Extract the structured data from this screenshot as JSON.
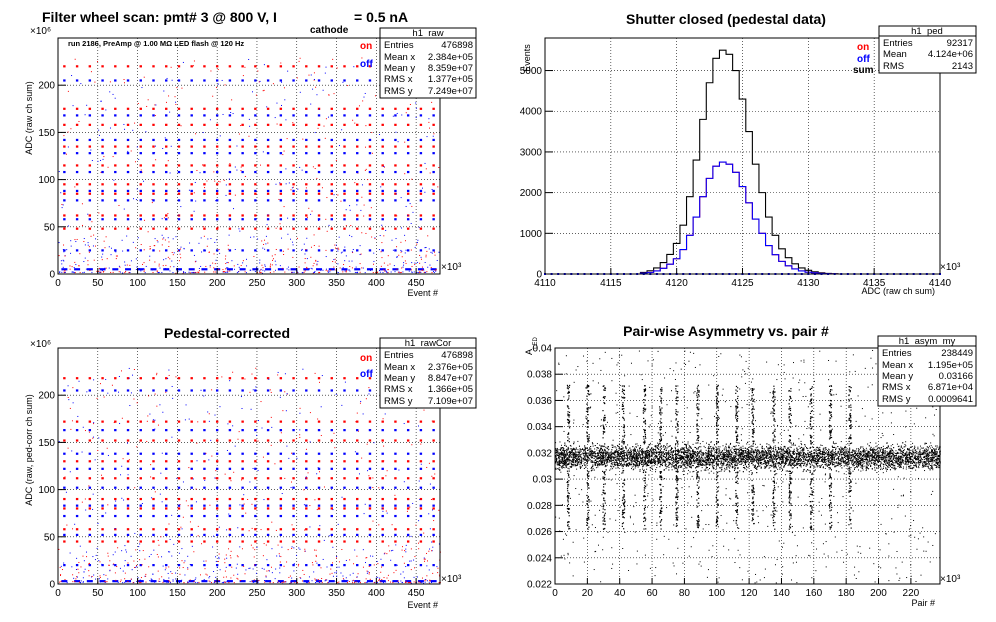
{
  "chart_data": [
    {
      "id": "raw",
      "type": "scatter",
      "title_main": "Filter wheel scan: pmt#   3 @   800 V, I",
      "title_sub": "cathode",
      "title_tail": "= 0.5 nA",
      "subtitle": "run 2186, PreAmp @ 1.00 MΩ   LED flash @  120 Hz",
      "xlabel": "Event #",
      "ylabel": "ADC (raw ch sum)",
      "x_multiplier": "×10³",
      "y_multiplier": "×10⁶",
      "xlim": [
        0,
        480
      ],
      "ylim": [
        0,
        250
      ],
      "xticks": [
        0,
        50,
        100,
        150,
        200,
        250,
        300,
        350,
        400,
        450
      ],
      "yticks": [
        0,
        50,
        100,
        150,
        200
      ],
      "grid": true,
      "legend": [
        {
          "label": "on",
          "color": "#ff0000"
        },
        {
          "label": "off",
          "color": "#0000ff"
        }
      ],
      "series": [
        {
          "name": "on",
          "color": "#ff0000",
          "levels": [
            220,
            175,
            158,
            135,
            115,
            95,
            85,
            62,
            48
          ]
        },
        {
          "name": "off",
          "color": "#0000ff",
          "levels": [
            205,
            168,
            142,
            128,
            108,
            88,
            78,
            58,
            25,
            5
          ]
        }
      ],
      "stats": {
        "name": "h1_raw",
        "rows": [
          {
            "label": "Entries",
            "value": "476898"
          },
          {
            "label": "Mean x",
            "value": "2.384e+05"
          },
          {
            "label": "Mean y",
            "value": "8.359e+07"
          },
          {
            "label": "RMS x",
            "value": "1.377e+05"
          },
          {
            "label": "RMS y",
            "value": "7.249e+07"
          }
        ]
      }
    },
    {
      "id": "ped",
      "type": "line",
      "title_main": "Shutter closed (pedestal data)",
      "xlabel": "ADC (raw ch sum)",
      "ylabel": "Events",
      "x_multiplier": "×10³",
      "xlim": [
        4110,
        4140
      ],
      "ylim": [
        0,
        5800
      ],
      "xticks": [
        4110,
        4115,
        4120,
        4125,
        4130,
        4135,
        4140
      ],
      "yticks": [
        0,
        1000,
        2000,
        3000,
        4000,
        5000
      ],
      "grid": true,
      "legend": [
        {
          "label": "on",
          "color": "#ff0000"
        },
        {
          "label": "off",
          "color": "#0000ff"
        },
        {
          "label": "sum",
          "color": "#000000"
        }
      ],
      "x": [
        4117.5,
        4118.0,
        4118.5,
        4119.0,
        4119.5,
        4120.0,
        4120.5,
        4121.0,
        4121.5,
        4122.0,
        4122.5,
        4123.0,
        4123.5,
        4124.0,
        4124.5,
        4125.0,
        4125.5,
        4126.0,
        4126.5,
        4127.0,
        4127.5,
        4128.0,
        4128.5,
        4129.0,
        4129.5,
        4130.0,
        4130.5,
        4131.0,
        4131.5,
        4132.0
      ],
      "series": [
        {
          "name": "sum",
          "color": "#000000",
          "values": [
            40,
            80,
            150,
            280,
            480,
            750,
            1200,
            1900,
            2800,
            3800,
            4700,
            5300,
            5500,
            5400,
            5000,
            4300,
            3500,
            2700,
            2000,
            1400,
            950,
            620,
            400,
            250,
            150,
            90,
            55,
            30,
            15,
            5
          ]
        },
        {
          "name": "on",
          "color": "#ff0000",
          "values": [
            20,
            40,
            75,
            140,
            240,
            375,
            600,
            950,
            1400,
            1900,
            2350,
            2650,
            2750,
            2700,
            2500,
            2150,
            1750,
            1350,
            1000,
            700,
            475,
            310,
            200,
            125,
            75,
            45,
            28,
            15,
            8,
            3
          ]
        },
        {
          "name": "off",
          "color": "#0000ff",
          "values": [
            20,
            40,
            75,
            140,
            240,
            375,
            600,
            950,
            1400,
            1900,
            2350,
            2650,
            2750,
            2700,
            2500,
            2150,
            1750,
            1350,
            1000,
            700,
            475,
            310,
            200,
            125,
            75,
            45,
            28,
            15,
            8,
            3
          ]
        }
      ],
      "stats": {
        "name": "h1_ped",
        "rows": [
          {
            "label": "Entries",
            "value": "92317"
          },
          {
            "label": "Mean",
            "value": "4.124e+06"
          },
          {
            "label": "RMS",
            "value": "2143"
          }
        ]
      }
    },
    {
      "id": "cor",
      "type": "scatter",
      "title_main": "Pedestal-corrected",
      "xlabel": "Event #",
      "ylabel": "ADC (raw, ped-corr ch sum)",
      "x_multiplier": "×10³",
      "y_multiplier": "×10⁶",
      "xlim": [
        0,
        480
      ],
      "ylim": [
        0,
        250
      ],
      "xticks": [
        0,
        50,
        100,
        150,
        200,
        250,
        300,
        350,
        400,
        450
      ],
      "yticks": [
        0,
        50,
        100,
        150,
        200
      ],
      "grid": true,
      "legend": [
        {
          "label": "on",
          "color": "#ff0000"
        },
        {
          "label": "off",
          "color": "#0000ff"
        }
      ],
      "series": [
        {
          "name": "on",
          "color": "#ff0000",
          "levels": [
            218,
            172,
            152,
            130,
            112,
            90,
            80,
            58,
            45
          ]
        },
        {
          "name": "off",
          "color": "#0000ff",
          "levels": [
            205,
            163,
            138,
            122,
            102,
            83,
            72,
            52,
            20,
            3
          ]
        }
      ],
      "stats": {
        "name": "h1_rawCor",
        "rows": [
          {
            "label": "Entries",
            "value": "476898"
          },
          {
            "label": "Mean x",
            "value": "2.376e+05"
          },
          {
            "label": "Mean y",
            "value": "8.847e+07"
          },
          {
            "label": "RMS x",
            "value": "1.366e+05"
          },
          {
            "label": "RMS y",
            "value": "7.109e+07"
          }
        ]
      }
    },
    {
      "id": "asym",
      "type": "scatter",
      "title_main": "Pair-wise Asymmetry vs. pair #",
      "xlabel": "Pair #",
      "ylabel": "A",
      "ylabel_sub": "LED",
      "x_multiplier": "×10³",
      "xlim": [
        0,
        238
      ],
      "ylim": [
        0.022,
        0.04
      ],
      "xticks": [
        0,
        20,
        40,
        60,
        80,
        100,
        120,
        140,
        160,
        180,
        200,
        220
      ],
      "yticks": [
        0.022,
        0.024,
        0.026,
        0.028,
        0.03,
        0.032,
        0.034,
        0.036,
        0.038,
        0.04
      ],
      "grid": true,
      "band_center": 0.0317,
      "band_width": 0.0009,
      "spikes_x": [
        8,
        20,
        30,
        42,
        55,
        65,
        75,
        88,
        100,
        112,
        122,
        135,
        145,
        158,
        170,
        182
      ],
      "stats": {
        "name": "h1_asym_my",
        "rows": [
          {
            "label": "Entries",
            "value": "238449"
          },
          {
            "label": "Mean x",
            "value": "1.195e+05"
          },
          {
            "label": "Mean y",
            "value": "0.03166"
          },
          {
            "label": "RMS x",
            "value": "6.871e+04"
          },
          {
            "label": "RMS y",
            "value": "0.0009641"
          }
        ]
      }
    }
  ]
}
